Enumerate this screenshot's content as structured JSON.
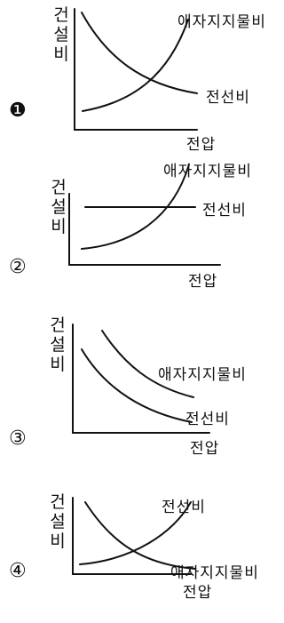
{
  "question_options": [
    {
      "number": "❶",
      "ylabel": "건설비",
      "xlabel": "전압",
      "rising_curve_label": "애자지지물비",
      "falling_curve_label": "전선비"
    },
    {
      "number": "②",
      "ylabel": "건설비",
      "xlabel": "전압",
      "rising_curve_label": "애자지지물비",
      "flat_line_label": "전선비"
    },
    {
      "number": "③",
      "ylabel": "건설비",
      "xlabel": "전압",
      "upper_curve_label": "애자지지물비",
      "lower_curve_label": "전선비"
    },
    {
      "number": "④",
      "ylabel": "건설비",
      "xlabel": "전압",
      "rising_curve_label": "전선비",
      "falling_curve_label": "애자지지물비"
    }
  ]
}
